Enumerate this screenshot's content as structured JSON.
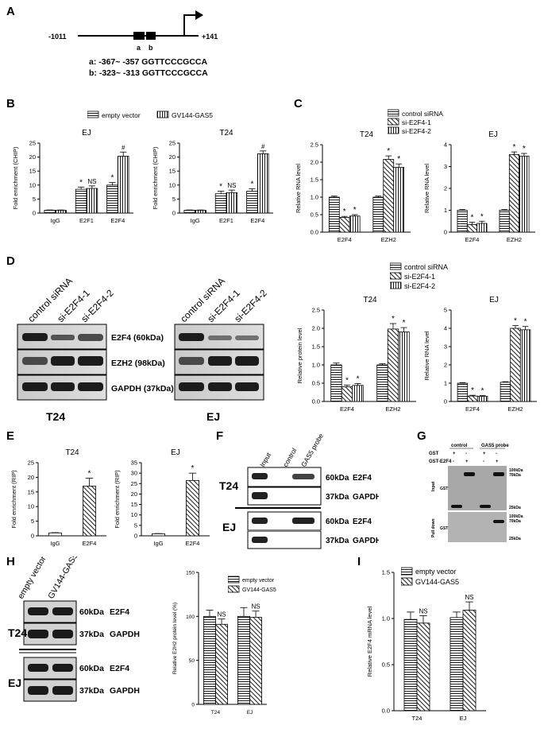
{
  "panels": {
    "A": "A",
    "B": "B",
    "C": "C",
    "D": "D",
    "E": "E",
    "F": "F",
    "G": "G",
    "H": "H",
    "I": "I"
  },
  "panelA": {
    "left_coord": "-1011",
    "right_coord": "+141",
    "site_a": "a",
    "site_b": "b",
    "seq_a": "a: -367~ -357 GGTTCCCGCCA",
    "seq_b": "b: -323~ -313 GGTTCCCGCCA"
  },
  "legendB": {
    "items": [
      "empty vector",
      "GV144-GAS5"
    ]
  },
  "legendC": {
    "items": [
      "control siRNA",
      "si-E2F4-1",
      "si-E2F4-2"
    ]
  },
  "legendD": {
    "items": [
      "control siRNA",
      "si-E2F4-1",
      "si-E2F4-2"
    ]
  },
  "legendH": {
    "items": [
      "empty vector",
      "GV144-GAS5"
    ]
  },
  "legendI": {
    "items": [
      "empty vector",
      "GV144-GAS5"
    ]
  },
  "blotD": {
    "lanes": [
      "control siRNA",
      "si-E2F4-1",
      "si-E2F4-2"
    ],
    "bands": [
      "E2F4 (60kDa)",
      "EZH2 (98kDa)",
      "GAPDH (37kDa)"
    ],
    "left_title": "T24",
    "right_title": "EJ"
  },
  "blotF": {
    "lanes": [
      "Input",
      "control",
      "GAS5 probe"
    ],
    "rows": [
      {
        "cell": "T24",
        "kda": "60kDa",
        "protein": "E2F4"
      },
      {
        "cell": "",
        "kda": "37kDa",
        "protein": "GAPDH"
      },
      {
        "cell": "EJ",
        "kda": "60kDa",
        "protein": "E2F4"
      },
      {
        "cell": "",
        "kda": "37kDa",
        "protein": "GAPDH"
      }
    ]
  },
  "blotG": {
    "col_groups": [
      "control",
      "GAS5 probe"
    ],
    "row_labels": [
      "GST",
      "GST-E2F4"
    ],
    "signs": [
      [
        "+",
        "-",
        "+",
        "-"
      ],
      [
        "-",
        "+",
        "-",
        "+"
      ]
    ],
    "section_input": "Input",
    "section_pulldown": "Pull down",
    "inner_label": "GST",
    "markers_top": [
      "100kDa",
      "70kDa",
      "25kDa"
    ],
    "markers_bottom": [
      "100kDa",
      "70kDa",
      "25kDa"
    ]
  },
  "blotH": {
    "lanes": [
      "empty vector",
      "GV144-GAS5"
    ],
    "rows": [
      {
        "cell": "T24",
        "kda": "60kDa",
        "protein": "E2F4"
      },
      {
        "cell": "",
        "kda": "37kDa",
        "protein": "GAPDH"
      },
      {
        "cell": "EJ",
        "kda": "60kDa",
        "protein": "E2F4"
      },
      {
        "cell": "",
        "kda": "37kDa",
        "protein": "GAPDH"
      }
    ]
  },
  "chart_data": [
    {
      "id": "B1",
      "type": "bar",
      "title": "EJ",
      "ylabel": "Fold enrichment (CHIP)",
      "ylim": [
        0,
        25
      ],
      "ticks": [
        0,
        5,
        10,
        15,
        20,
        25
      ],
      "categories": [
        "IgG",
        "E2F1",
        "E2F4"
      ],
      "series": [
        {
          "name": "empty vector",
          "values": [
            1,
            8.5,
            10
          ],
          "errors": [
            0.1,
            0.8,
            0.9
          ]
        },
        {
          "name": "GV144-GAS5",
          "values": [
            1,
            8.8,
            20.3
          ],
          "errors": [
            0.1,
            0.9,
            1.5
          ]
        }
      ],
      "annotations": [
        {
          "cat": 1,
          "s": 0,
          "text": "*"
        },
        {
          "cat": 1,
          "s": 1,
          "text": "NS"
        },
        {
          "cat": 2,
          "s": 0,
          "text": "*"
        },
        {
          "cat": 2,
          "s": 1,
          "text": "#"
        }
      ]
    },
    {
      "id": "B2",
      "type": "bar",
      "title": "T24",
      "ylabel": "Fold enrichment (CHIP)",
      "ylim": [
        0,
        25
      ],
      "ticks": [
        0,
        5,
        10,
        15,
        20,
        25
      ],
      "categories": [
        "IgG",
        "E2F1",
        "E2F4"
      ],
      "series": [
        {
          "name": "empty vector",
          "values": [
            1,
            6.9,
            7.8
          ],
          "errors": [
            0.1,
            0.9,
            0.9
          ]
        },
        {
          "name": "GV144-GAS5",
          "values": [
            1,
            7.3,
            21.2
          ],
          "errors": [
            0.1,
            0.9,
            1
          ]
        }
      ],
      "annotations": [
        {
          "cat": 1,
          "s": 0,
          "text": "*"
        },
        {
          "cat": 1,
          "s": 1,
          "text": "NS"
        },
        {
          "cat": 2,
          "s": 0,
          "text": "*"
        },
        {
          "cat": 2,
          "s": 1,
          "text": "#"
        }
      ]
    },
    {
      "id": "C1",
      "type": "bar",
      "title": "T24",
      "ylabel": "Relative RNA level",
      "ylim": [
        0,
        2.5
      ],
      "ticks": [
        0.0,
        0.5,
        1.0,
        1.5,
        2.0,
        2.5
      ],
      "categories": [
        "E2F4",
        "EZH2"
      ],
      "series": [
        {
          "name": "control siRNA",
          "values": [
            1,
            1
          ],
          "errors": [
            0.03,
            0.03
          ]
        },
        {
          "name": "si-E2F4-1",
          "values": [
            0.42,
            2.08
          ],
          "errors": [
            0.03,
            0.1
          ]
        },
        {
          "name": "si-E2F4-2",
          "values": [
            0.46,
            1.85
          ],
          "errors": [
            0.04,
            0.1
          ]
        }
      ],
      "annotations": [
        {
          "cat": 0,
          "s": 1,
          "text": "*"
        },
        {
          "cat": 0,
          "s": 2,
          "text": "*"
        },
        {
          "cat": 1,
          "s": 1,
          "text": "*"
        },
        {
          "cat": 1,
          "s": 2,
          "text": "*"
        }
      ]
    },
    {
      "id": "C2",
      "type": "bar",
      "title": "EJ",
      "ylabel": "Relative RNA level",
      "ylim": [
        0,
        4
      ],
      "ticks": [
        0,
        1,
        2,
        3,
        4
      ],
      "categories": [
        "E2F4",
        "EZH2"
      ],
      "series": [
        {
          "name": "control siRNA",
          "values": [
            1,
            1
          ],
          "errors": [
            0.03,
            0.03
          ]
        },
        {
          "name": "si-E2F4-1",
          "values": [
            0.35,
            3.55
          ],
          "errors": [
            0.1,
            0.12
          ]
        },
        {
          "name": "si-E2F4-2",
          "values": [
            0.4,
            3.48
          ],
          "errors": [
            0.1,
            0.12
          ]
        }
      ],
      "annotations": [
        {
          "cat": 0,
          "s": 1,
          "text": "*"
        },
        {
          "cat": 0,
          "s": 2,
          "text": "*"
        },
        {
          "cat": 1,
          "s": 1,
          "text": "*"
        },
        {
          "cat": 1,
          "s": 2,
          "text": "*"
        }
      ]
    },
    {
      "id": "D1",
      "type": "bar",
      "title": "T24",
      "ylabel": "Relative protein level",
      "ylim": [
        0,
        2.5
      ],
      "ticks": [
        0.0,
        0.5,
        1.0,
        1.5,
        2.0,
        2.5
      ],
      "categories": [
        "E2F4",
        "EZH2"
      ],
      "series": [
        {
          "name": "control siRNA",
          "values": [
            1,
            1
          ],
          "errors": [
            0.05,
            0.03
          ]
        },
        {
          "name": "si-E2F4-1",
          "values": [
            0.4,
            1.98
          ],
          "errors": [
            0.05,
            0.15
          ]
        },
        {
          "name": "si-E2F4-2",
          "values": [
            0.44,
            1.9
          ],
          "errors": [
            0.05,
            0.12
          ]
        }
      ],
      "annotations": [
        {
          "cat": 0,
          "s": 1,
          "text": "*"
        },
        {
          "cat": 0,
          "s": 2,
          "text": "*"
        },
        {
          "cat": 1,
          "s": 1,
          "text": "*"
        },
        {
          "cat": 1,
          "s": 2,
          "text": "*"
        }
      ]
    },
    {
      "id": "D2",
      "type": "bar",
      "title": "EJ",
      "ylabel": "Relative RNA level",
      "ylim": [
        0,
        5
      ],
      "ticks": [
        0,
        1,
        2,
        3,
        4,
        5
      ],
      "categories": [
        "E2F4",
        "EZH2"
      ],
      "series": [
        {
          "name": "control siRNA",
          "values": [
            1,
            1.05
          ],
          "errors": [
            0.03,
            0.03
          ]
        },
        {
          "name": "si-E2F4-1",
          "values": [
            0.3,
            4
          ],
          "errors": [
            0.04,
            0.15
          ]
        },
        {
          "name": "si-E2F4-2",
          "values": [
            0.28,
            3.92
          ],
          "errors": [
            0.04,
            0.18
          ]
        }
      ],
      "annotations": [
        {
          "cat": 0,
          "s": 1,
          "text": "*"
        },
        {
          "cat": 0,
          "s": 2,
          "text": "*"
        },
        {
          "cat": 1,
          "s": 1,
          "text": "*"
        },
        {
          "cat": 1,
          "s": 2,
          "text": "*"
        }
      ]
    },
    {
      "id": "E1",
      "type": "bar",
      "title": "T24",
      "ylabel": "Fold enrichment (RIP)",
      "ylim": [
        0,
        25
      ],
      "ticks": [
        0,
        5,
        10,
        15,
        20,
        25
      ],
      "categories": [
        "IgG",
        "E2F4"
      ],
      "series": [
        {
          "name": "",
          "values": [
            1,
            17
          ],
          "errors": [
            0.1,
            2.7
          ]
        }
      ],
      "annotations": [
        {
          "cat": 1,
          "s": 0,
          "text": "*"
        }
      ]
    },
    {
      "id": "E2",
      "type": "bar",
      "title": "EJ",
      "ylabel": "Fold enrichment (RIP)",
      "ylim": [
        0,
        35
      ],
      "ticks": [
        0,
        5,
        10,
        15,
        20,
        25,
        30,
        35
      ],
      "categories": [
        "IgG",
        "E2F4"
      ],
      "series": [
        {
          "name": "",
          "values": [
            1,
            26.5
          ],
          "errors": [
            0.1,
            3.5
          ]
        }
      ],
      "annotations": [
        {
          "cat": 1,
          "s": 0,
          "text": "*"
        }
      ]
    },
    {
      "id": "H1",
      "type": "bar",
      "title": "",
      "ylabel": "Relative E2H2 protein level (%)",
      "ylim": [
        0,
        150
      ],
      "ticks": [
        0,
        50,
        100,
        150
      ],
      "categories": [
        "T24",
        "EJ"
      ],
      "series": [
        {
          "name": "empty vector",
          "values": [
            100,
            100
          ],
          "errors": [
            7,
            10
          ]
        },
        {
          "name": "GV144-GAS5",
          "values": [
            91,
            99
          ],
          "errors": [
            6,
            7
          ]
        }
      ],
      "annotations": [
        {
          "cat": 0,
          "s": 1,
          "text": "NS"
        },
        {
          "cat": 1,
          "s": 1,
          "text": "NS"
        }
      ]
    },
    {
      "id": "I1",
      "type": "bar",
      "title": "",
      "ylabel": "Relative E2F4 mRNA level",
      "ylim": [
        0,
        1.5
      ],
      "ticks": [
        0.0,
        0.5,
        1.0,
        1.5
      ],
      "categories": [
        "T24",
        "EJ"
      ],
      "series": [
        {
          "name": "empty vector",
          "values": [
            0.99,
            1.01
          ],
          "errors": [
            0.08,
            0.06
          ]
        },
        {
          "name": "GV144-GAS5",
          "values": [
            0.95,
            1.09
          ],
          "errors": [
            0.08,
            0.09
          ]
        }
      ],
      "annotations": [
        {
          "cat": 0,
          "s": 1,
          "text": "NS"
        },
        {
          "cat": 1,
          "s": 1,
          "text": "NS"
        }
      ]
    }
  ]
}
